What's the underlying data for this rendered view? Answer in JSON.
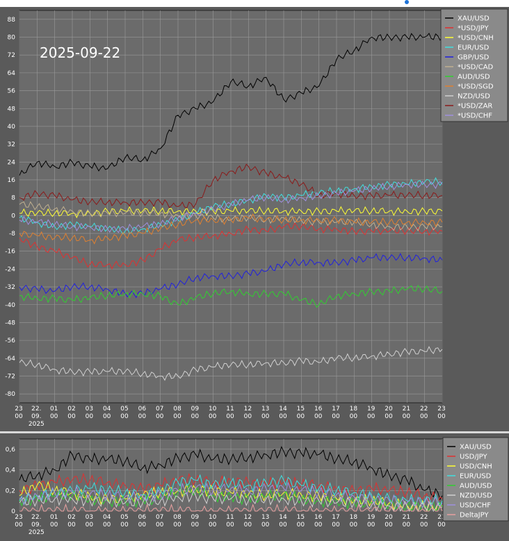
{
  "date_label": "2025-09-22",
  "colors": {
    "XAU/USD": "#000000",
    "*USD/JPY": "#e03030",
    "*USD/CNH": "#ffff33",
    "EUR/USD": "#40e0e0",
    "GBP/USD": "#2020e0",
    "*USD/CAD": "#c0b090",
    "AUD/USD": "#30d030",
    "*USD/SGD": "#e08030",
    "NZD/USD": "#d0d0d0",
    "*USD/ZAR": "#8b1a1a",
    "*USD/CHF": "#a090e0",
    "USD/JPY": "#e03030",
    "USD/CNH": "#ffff33",
    "USD/CHF": "#a090e0",
    "DeltaJPY": "#e8a0a0"
  },
  "x_ticks": [
    {
      "top": "23",
      "bottom": "00"
    },
    {
      "top": "22.",
      "bottom": "09.",
      "extra": "2025"
    },
    {
      "top": "01",
      "bottom": "00"
    },
    {
      "top": "02",
      "bottom": "00"
    },
    {
      "top": "03",
      "bottom": "00"
    },
    {
      "top": "04",
      "bottom": "00"
    },
    {
      "top": "05",
      "bottom": "00"
    },
    {
      "top": "06",
      "bottom": "00"
    },
    {
      "top": "07",
      "bottom": "00"
    },
    {
      "top": "08",
      "bottom": "00"
    },
    {
      "top": "09",
      "bottom": "00"
    },
    {
      "top": "10",
      "bottom": "00"
    },
    {
      "top": "11",
      "bottom": "00"
    },
    {
      "top": "12",
      "bottom": "00"
    },
    {
      "top": "13",
      "bottom": "00"
    },
    {
      "top": "14",
      "bottom": "00"
    },
    {
      "top": "15",
      "bottom": "00"
    },
    {
      "top": "16",
      "bottom": "00"
    },
    {
      "top": "17",
      "bottom": "00"
    },
    {
      "top": "18",
      "bottom": "00"
    },
    {
      "top": "19",
      "bottom": "00"
    },
    {
      "top": "20",
      "bottom": "00"
    },
    {
      "top": "21",
      "bottom": "00"
    },
    {
      "top": "22",
      "bottom": "00"
    },
    {
      "top": "23",
      "bottom": "00"
    }
  ],
  "chart_data": [
    {
      "type": "line",
      "title": "",
      "xlabel": "",
      "ylabel": "",
      "ylim": [
        -84,
        92
      ],
      "yticks": [
        "88",
        "80",
        "72",
        "64",
        "56",
        "48",
        "40",
        "32",
        "24",
        "16",
        "8",
        "0",
        "-8",
        "-16",
        "-24",
        "-32",
        "-40",
        "-48",
        "-56",
        "-64",
        "-72",
        "-80"
      ],
      "grid": true,
      "legend_position": "top-right",
      "x": [
        0,
        1,
        2,
        3,
        4,
        5,
        6,
        7,
        8,
        9,
        10,
        11,
        12,
        13,
        14,
        15,
        16,
        17,
        18,
        19,
        20,
        21,
        22,
        23,
        24
      ],
      "series": [
        {
          "name": "XAU/USD",
          "values": [
            18,
            24,
            22,
            24,
            22,
            21,
            26,
            25,
            30,
            45,
            48,
            51,
            60,
            58,
            62,
            52,
            55,
            58,
            70,
            74,
            80,
            80,
            80,
            80,
            80
          ]
        },
        {
          "name": "*USD/JPY",
          "values": [
            -10,
            -14,
            -16,
            -19,
            -22,
            -22,
            -22,
            -20,
            -15,
            -11,
            -10,
            -9,
            -8,
            -6,
            -7,
            -5,
            -5,
            -6,
            -6,
            -7,
            -7,
            -7,
            -7,
            -7,
            -7
          ]
        },
        {
          "name": "*USD/CNH",
          "values": [
            1,
            1,
            1,
            1,
            1,
            2,
            2,
            2,
            2,
            2,
            2,
            2,
            2,
            2,
            2,
            2,
            2,
            2,
            2,
            2,
            2,
            2,
            2,
            2,
            2
          ]
        },
        {
          "name": "EUR/USD",
          "values": [
            -1,
            -3,
            -5,
            -4,
            -5,
            -6,
            -7,
            -6,
            -4,
            -2,
            1,
            4,
            5,
            7,
            9,
            8,
            9,
            10,
            11,
            12,
            13,
            14,
            14,
            15,
            15
          ]
        },
        {
          "name": "GBP/USD",
          "values": [
            -32,
            -33,
            -34,
            -32,
            -32,
            -33,
            -35,
            -35,
            -33,
            -31,
            -28,
            -27,
            -27,
            -26,
            -25,
            -22,
            -21,
            -21,
            -21,
            -20,
            -19,
            -19,
            -19,
            -19,
            -20
          ]
        },
        {
          "name": "*USD/CAD",
          "values": [
            5,
            4,
            3,
            2,
            1,
            1,
            1,
            1,
            1,
            0,
            0,
            -1,
            -2,
            -1,
            -2,
            -1,
            -2,
            -3,
            -3,
            -3,
            -4,
            -5,
            -5,
            -5,
            -5
          ]
        },
        {
          "name": "AUD/USD",
          "values": [
            -36,
            -37,
            -37,
            -38,
            -37,
            -36,
            -35,
            -35,
            -36,
            -40,
            -37,
            -35,
            -34,
            -35,
            -35,
            -35,
            -38,
            -40,
            -36,
            -35,
            -34,
            -34,
            -33,
            -33,
            -34
          ]
        },
        {
          "name": "*USD/SGD",
          "values": [
            -8,
            -9,
            -10,
            -10,
            -11,
            -10,
            -9,
            -8,
            -6,
            -4,
            -2,
            -2,
            -2,
            -1,
            -2,
            -2,
            -2,
            -2,
            -2,
            -3,
            -3,
            -3,
            -3,
            -3,
            -3
          ]
        },
        {
          "name": "NZD/USD",
          "values": [
            -66,
            -67,
            -69,
            -70,
            -70,
            -70,
            -70,
            -71,
            -72,
            -72,
            -69,
            -68,
            -67,
            -67,
            -66,
            -66,
            -65,
            -66,
            -64,
            -64,
            -63,
            -62,
            -61,
            -61,
            -60
          ]
        },
        {
          "name": "*USD/ZAR",
          "values": [
            8,
            10,
            9,
            7,
            6,
            6,
            6,
            6,
            6,
            4,
            5,
            16,
            20,
            22,
            19,
            17,
            14,
            9,
            10,
            9,
            9,
            9,
            9,
            9,
            9
          ]
        },
        {
          "name": "*USD/CHF",
          "values": [
            -2,
            -3,
            -4,
            -5,
            -5,
            -6,
            -6,
            -5,
            -4,
            -1,
            1,
            3,
            5,
            7,
            8,
            7,
            8,
            9,
            10,
            11,
            12,
            13,
            14,
            14,
            14
          ]
        }
      ]
    },
    {
      "type": "line",
      "title": "",
      "xlabel": "",
      "ylabel": "",
      "ylim": [
        0,
        0.7
      ],
      "yticks": [
        "0,6",
        "0,4",
        "0,2",
        "0"
      ],
      "grid": true,
      "legend_position": "top-right",
      "x": [
        0,
        1,
        2,
        3,
        4,
        5,
        6,
        7,
        8,
        9,
        10,
        11,
        12,
        13,
        14,
        15,
        16,
        17,
        18,
        19,
        20,
        21,
        22,
        23,
        24
      ],
      "series": [
        {
          "name": "XAU/USD",
          "values": [
            0.3,
            0.35,
            0.4,
            0.55,
            0.5,
            0.5,
            0.48,
            0.42,
            0.45,
            0.52,
            0.55,
            0.5,
            0.5,
            0.52,
            0.55,
            0.58,
            0.56,
            0.55,
            0.5,
            0.48,
            0.42,
            0.35,
            0.3,
            0.2,
            0.15
          ]
        },
        {
          "name": "USD/JPY",
          "values": [
            0.2,
            0.25,
            0.28,
            0.3,
            0.3,
            0.28,
            0.25,
            0.22,
            0.25,
            0.3,
            0.3,
            0.28,
            0.3,
            0.28,
            0.26,
            0.28,
            0.26,
            0.25,
            0.22,
            0.2,
            0.22,
            0.2,
            0.18,
            0.15,
            0.12
          ]
        },
        {
          "name": "USD/CNH",
          "values": [
            0.15,
            0.25,
            0.2,
            0.18,
            0.15,
            0.12,
            0.12,
            0.15,
            0.18,
            0.2,
            0.22,
            0.2,
            0.18,
            0.16,
            0.15,
            0.18,
            0.16,
            0.15,
            0.12,
            0.1,
            0.1,
            0.08,
            0.06,
            0.05,
            0.05
          ]
        },
        {
          "name": "EUR/USD",
          "values": [
            0.1,
            0.15,
            0.18,
            0.2,
            0.22,
            0.2,
            0.18,
            0.16,
            0.2,
            0.28,
            0.3,
            0.25,
            0.28,
            0.25,
            0.28,
            0.3,
            0.25,
            0.22,
            0.2,
            0.18,
            0.15,
            0.12,
            0.1,
            0.1,
            0.1
          ]
        },
        {
          "name": "AUD/USD",
          "values": [
            0.1,
            0.12,
            0.15,
            0.15,
            0.12,
            0.1,
            0.1,
            0.1,
            0.12,
            0.18,
            0.2,
            0.15,
            0.14,
            0.12,
            0.14,
            0.15,
            0.12,
            0.1,
            0.1,
            0.08,
            0.08,
            0.06,
            0.05,
            0.05,
            0.04
          ]
        },
        {
          "name": "NZD/USD",
          "values": [
            0.08,
            0.1,
            0.12,
            0.12,
            0.1,
            0.1,
            0.08,
            0.08,
            0.1,
            0.14,
            0.15,
            0.12,
            0.12,
            0.1,
            0.12,
            0.12,
            0.1,
            0.1,
            0.08,
            0.08,
            0.06,
            0.05,
            0.05,
            0.04,
            0.04
          ]
        },
        {
          "name": "USD/CHF",
          "values": [
            0.12,
            0.15,
            0.18,
            0.18,
            0.16,
            0.15,
            0.14,
            0.14,
            0.16,
            0.2,
            0.22,
            0.2,
            0.22,
            0.2,
            0.22,
            0.22,
            0.2,
            0.18,
            0.16,
            0.14,
            0.12,
            0.1,
            0.08,
            0.08,
            0.08
          ]
        },
        {
          "name": "DeltaJPY",
          "values": [
            0,
            0,
            0,
            0,
            0,
            0,
            0,
            0,
            0,
            0,
            0,
            0,
            0,
            0,
            0,
            0,
            0,
            0,
            0,
            0,
            0,
            0,
            0,
            0,
            0
          ]
        }
      ]
    }
  ]
}
